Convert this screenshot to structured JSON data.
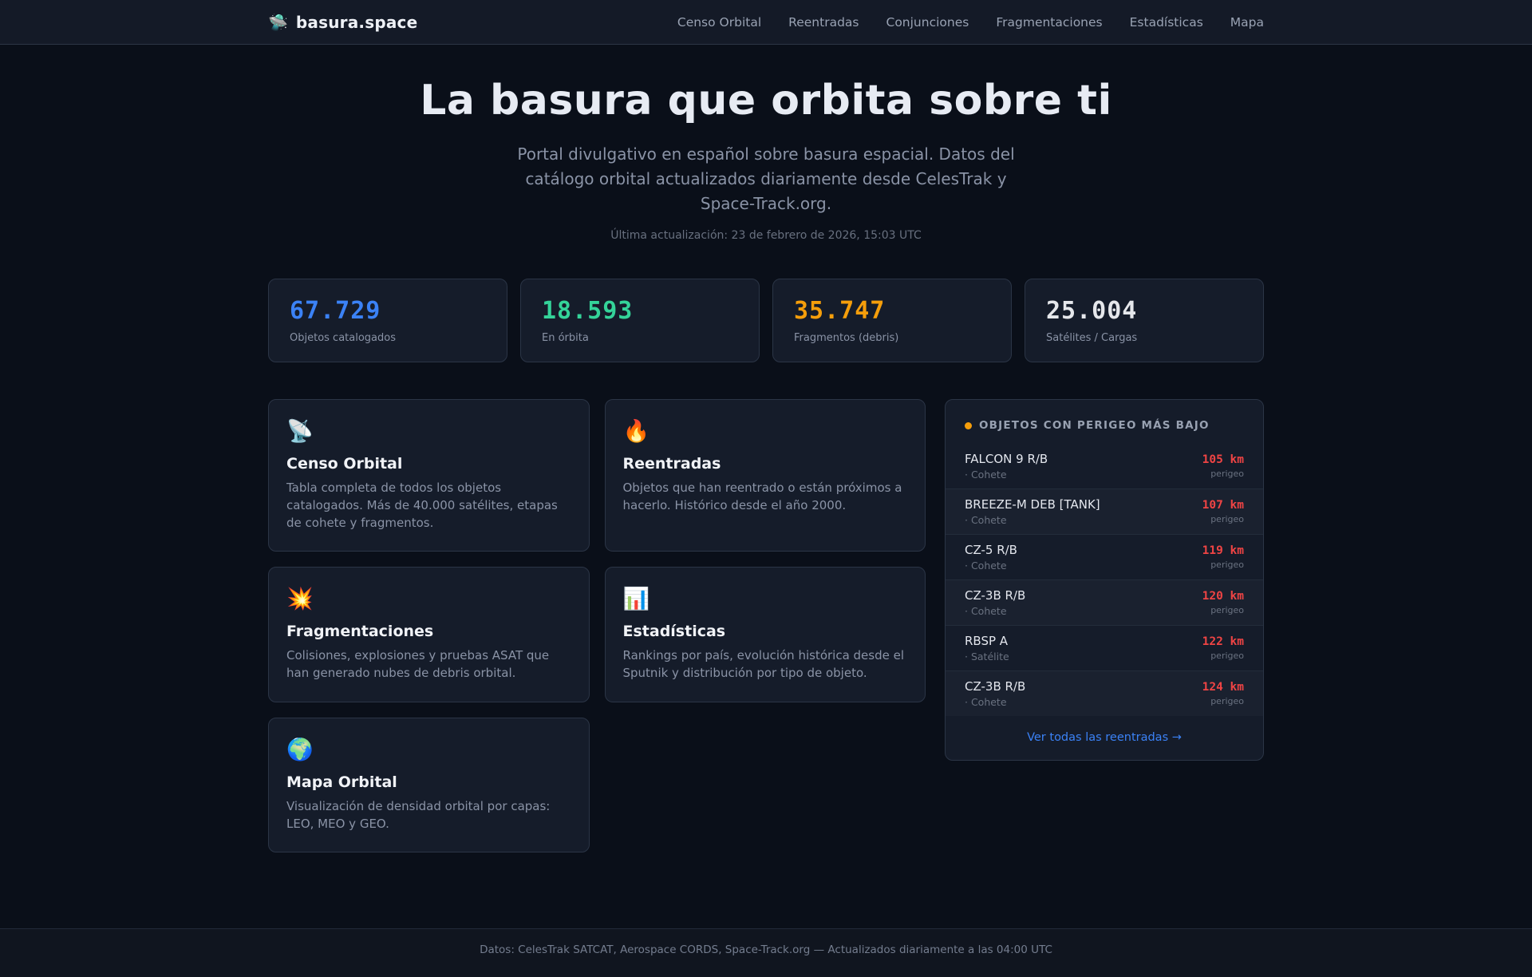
{
  "brand": {
    "icon": "🛸",
    "name": "basura.space"
  },
  "nav": {
    "items": [
      {
        "label": "Censo Orbital"
      },
      {
        "label": "Reentradas"
      },
      {
        "label": "Conjunciones"
      },
      {
        "label": "Fragmentaciones"
      },
      {
        "label": "Estadísticas"
      },
      {
        "label": "Mapa"
      }
    ]
  },
  "hero": {
    "title": "La basura que orbita sobre ti",
    "subtitle": "Portal divulgativo en español sobre basura espacial. Datos del catálogo orbital actualizados diariamente desde CelesTrak y Space-Track.org.",
    "last_update": "Última actualización: 23 de febrero de 2026, 15:03 UTC"
  },
  "stats": {
    "cards": [
      {
        "value": "67.729",
        "label": "Objetos catalogados",
        "color": "#3b82f6"
      },
      {
        "value": "18.593",
        "label": "En órbita",
        "color": "#34d399"
      },
      {
        "value": "35.747",
        "label": "Fragmentos (debris)",
        "color": "#f59e0b"
      },
      {
        "value": "25.004",
        "label": "Satélites / Cargas",
        "color": "#e5e7eb"
      }
    ]
  },
  "features": {
    "cards": [
      {
        "icon": "📡",
        "title": "Censo Orbital",
        "description": "Tabla completa de todos los objetos catalogados. Más de 40.000 satélites, etapas de cohete y fragmentos."
      },
      {
        "icon": "🔥",
        "title": "Reentradas",
        "description": "Objetos que han reentrado o están próximos a hacerlo. Histórico desde el año 2000."
      },
      {
        "icon": "💥",
        "title": "Fragmentaciones",
        "description": "Colisiones, explosiones y pruebas ASAT que han generado nubes de debris orbital."
      },
      {
        "icon": "📊",
        "title": "Estadísticas",
        "description": "Rankings por país, evolución histórica desde el Sputnik y distribución por tipo de objeto."
      },
      {
        "icon": "🌍",
        "title": "Mapa Orbital",
        "description": "Visualización de densidad orbital por capas: LEO, MEO y GEO."
      }
    ]
  },
  "perigee_panel": {
    "title": "OBJETOS CON PERIGEO MÁS BAJO",
    "items": [
      {
        "name": "FALCON 9 R/B",
        "type": "· Cohete",
        "value": "105 km",
        "value_label": "perigeo"
      },
      {
        "name": "BREEZE-M DEB [TANK]",
        "type": "· Cohete",
        "value": "107 km",
        "value_label": "perigeo"
      },
      {
        "name": "CZ-5 R/B",
        "type": "· Cohete",
        "value": "119 km",
        "value_label": "perigeo"
      },
      {
        "name": "CZ-3B R/B",
        "type": "· Cohete",
        "value": "120 km",
        "value_label": "perigeo"
      },
      {
        "name": "RBSP A",
        "type": "· Satélite",
        "value": "122 km",
        "value_label": "perigeo"
      },
      {
        "name": "CZ-3B R/B",
        "type": "· Cohete",
        "value": "124 km",
        "value_label": "perigeo"
      }
    ],
    "link_label": "Ver todas las reentradas →"
  },
  "footer": {
    "text": "Datos: CelesTrak SATCAT, Aerospace CORDS, Space-Track.org — Actualizados diariamente a las 04:00 UTC"
  },
  "colors": {
    "accent_blue": "#3b82f6",
    "accent_green": "#34d399",
    "accent_orange": "#f59e0b",
    "accent_red": "#ef4444",
    "background": "#0a0f19",
    "card_background": "#151c2a",
    "card_border": "#2b3546"
  }
}
